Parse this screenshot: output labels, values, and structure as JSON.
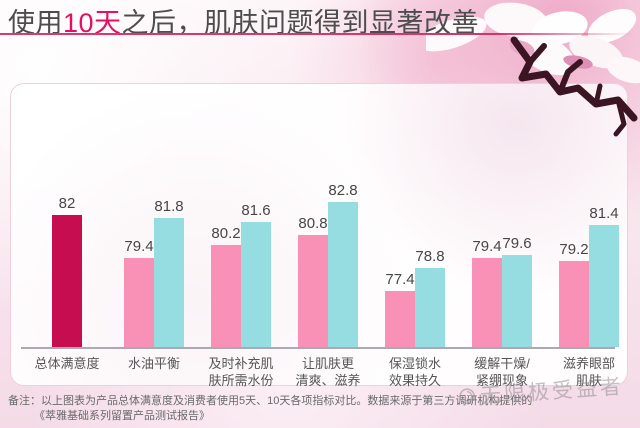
{
  "title": {
    "prefix": "使用",
    "highlight": "10天",
    "suffix": "之后，肌肤问题得到显著改善"
  },
  "chart_data": {
    "type": "bar",
    "title": "使用10天之后，肌肤问题得到显著改善",
    "xlabel": "",
    "ylabel": "",
    "ylim": [
      74,
      84
    ],
    "grid": false,
    "legend_position": "none",
    "colors": {
      "total": "#c50d4f",
      "day5": "#f990b6",
      "day10": "#95dde0"
    },
    "groups": [
      {
        "label": "总体满意度",
        "bars": [
          {
            "value": 82,
            "color_key": "total"
          }
        ]
      },
      {
        "label": "水油平衡",
        "bars": [
          {
            "value": 79.4,
            "color_key": "day5"
          },
          {
            "value": 81.8,
            "color_key": "day10"
          }
        ]
      },
      {
        "label": "及时补充肌\n肤所需水份",
        "bars": [
          {
            "value": 80.2,
            "color_key": "day5"
          },
          {
            "value": 81.6,
            "color_key": "day10"
          }
        ]
      },
      {
        "label": "让肌肤更\n清爽、滋养",
        "bars": [
          {
            "value": 80.8,
            "color_key": "day5"
          },
          {
            "value": 82.8,
            "color_key": "day10"
          }
        ]
      },
      {
        "label": "保湿锁水\n效果持久",
        "bars": [
          {
            "value": 77.4,
            "color_key": "day5"
          },
          {
            "value": 78.8,
            "color_key": "day10"
          }
        ]
      },
      {
        "label": "缓解干燥/\n紧绷现象",
        "bars": [
          {
            "value": 79.4,
            "color_key": "day5"
          },
          {
            "value": 79.6,
            "color_key": "day10"
          }
        ]
      },
      {
        "label": "滋养眼部\n肌肤",
        "bars": [
          {
            "value": 79.2,
            "color_key": "day5"
          },
          {
            "value": 81.4,
            "color_key": "day10"
          }
        ]
      }
    ]
  },
  "footer": {
    "line1": "备注：以上图表为产品总体满意度及消费者使用5天、10天各项指标对比。数据来源于第三方调研机构提供的",
    "line2": "《萃雅基础系列留置产品测试报告》"
  },
  "watermark": {
    "text": "无限极受益者"
  }
}
